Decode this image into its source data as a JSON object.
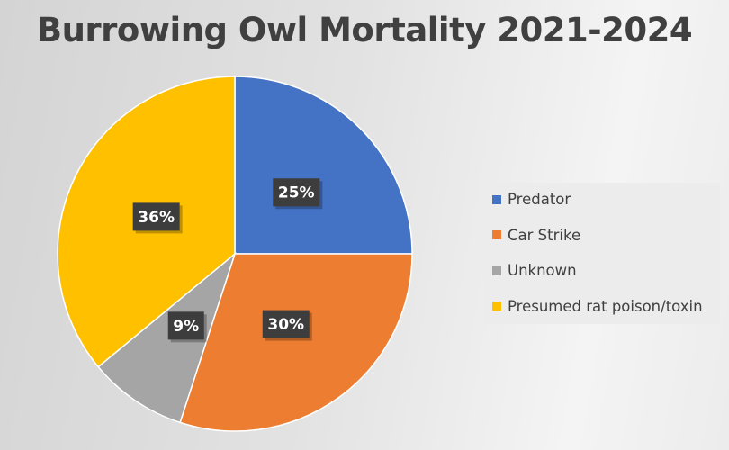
{
  "chart_data": {
    "type": "pie",
    "title": "Burrowing Owl Mortality 2021-2024",
    "categories": [
      "Predator",
      "Car Strike",
      "Unknown",
      "Presumed rat poison/toxin"
    ],
    "values": [
      25,
      30,
      9,
      36
    ],
    "data_labels": [
      "25%",
      "30%",
      "9%",
      "36%"
    ],
    "colors": [
      "#4472C4",
      "#ED7D31",
      "#A5A5A5",
      "#FFC000"
    ],
    "start_angle": "top, clockwise",
    "legend_position": "right"
  }
}
